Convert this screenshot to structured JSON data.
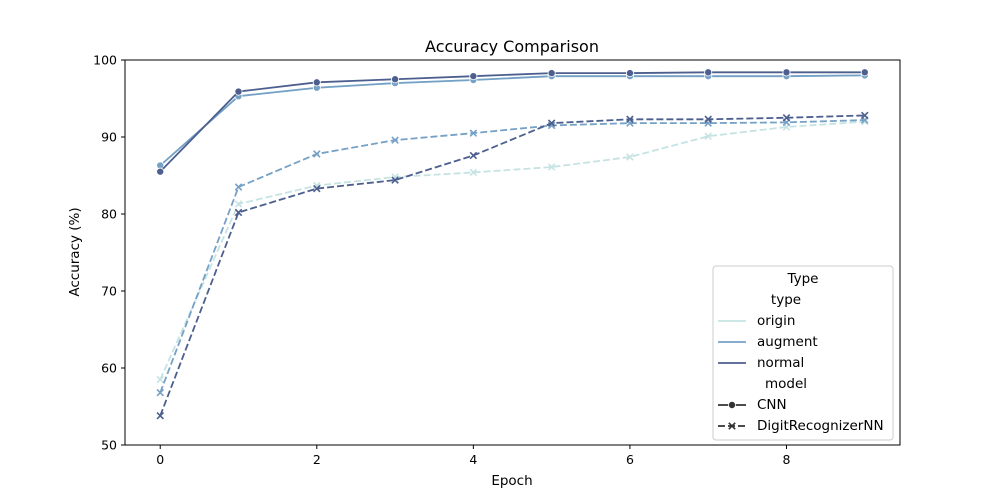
{
  "chart_data": {
    "type": "line",
    "title": "Accuracy Comparison",
    "xlabel": "Epoch",
    "ylabel": "Accuracy (%)",
    "xlim": [
      -0.45,
      9.45
    ],
    "ylim": [
      50,
      100
    ],
    "xticks": [
      0,
      2,
      4,
      6,
      8
    ],
    "yticks": [
      50,
      60,
      70,
      80,
      90,
      100
    ],
    "x": [
      0,
      1,
      2,
      3,
      4,
      5,
      6,
      7,
      8,
      9
    ],
    "grid": false,
    "legend": {
      "title": "Type",
      "placement": "lower-right",
      "sections": [
        {
          "header": "type",
          "entries": [
            {
              "label": "origin",
              "color": "#c6e3e3"
            },
            {
              "label": "augment",
              "color": "#76a1c6"
            },
            {
              "label": "normal",
              "color": "#4d5f8e"
            }
          ]
        },
        {
          "header": "model",
          "entries": [
            {
              "label": "CNN",
              "marker": "circle",
              "dash": "solid"
            },
            {
              "label": "DigitRecognizerNN",
              "marker": "x",
              "dash": "dashed"
            }
          ]
        }
      ]
    },
    "series": [
      {
        "type": "origin",
        "model": "CNN",
        "color": "#c6e3e3",
        "marker": "circle",
        "dash": "solid",
        "values": [
          86.3,
          95.3,
          96.4,
          97.0,
          97.4,
          97.9,
          97.9,
          97.9,
          97.9,
          98.0
        ]
      },
      {
        "type": "augment",
        "model": "CNN",
        "color": "#76a1c6",
        "marker": "circle",
        "dash": "solid",
        "values": [
          86.3,
          95.3,
          96.4,
          97.0,
          97.4,
          97.9,
          97.9,
          97.9,
          97.9,
          98.0
        ]
      },
      {
        "type": "normal",
        "model": "CNN",
        "color": "#4d5f8e",
        "marker": "circle",
        "dash": "solid",
        "values": [
          85.5,
          95.9,
          97.1,
          97.5,
          97.9,
          98.3,
          98.3,
          98.4,
          98.4,
          98.4
        ]
      },
      {
        "type": "origin",
        "model": "DigitRecognizerNN",
        "color": "#c6e3e3",
        "marker": "x",
        "dash": "dashed",
        "values": [
          58.5,
          81.3,
          83.7,
          84.8,
          85.4,
          86.1,
          87.4,
          90.1,
          91.3,
          92.0
        ]
      },
      {
        "type": "augment",
        "model": "DigitRecognizerNN",
        "color": "#76a1c6",
        "marker": "x",
        "dash": "dashed",
        "values": [
          56.8,
          83.5,
          87.8,
          89.6,
          90.5,
          91.5,
          91.8,
          91.8,
          91.9,
          92.2
        ]
      },
      {
        "type": "normal",
        "model": "DigitRecognizerNN",
        "color": "#4d5f8e",
        "marker": "x",
        "dash": "dashed",
        "values": [
          53.8,
          80.2,
          83.3,
          84.4,
          87.6,
          91.8,
          92.3,
          92.3,
          92.5,
          92.8
        ]
      }
    ]
  }
}
